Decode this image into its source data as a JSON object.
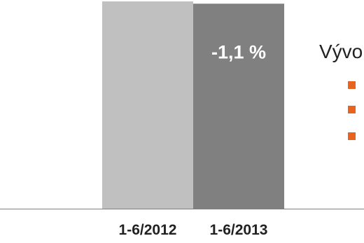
{
  "chart_data": {
    "type": "bar",
    "categories": [
      "1-6/2012",
      "1-6/2013"
    ],
    "values": [
      100,
      98.9
    ],
    "data_labels": [
      "",
      "-1,1 %"
    ],
    "bar_colors": [
      "#c0c0c0",
      "#808080"
    ],
    "title": "",
    "xlabel": "",
    "ylabel": "",
    "ylim": [
      0,
      100
    ],
    "grid": false,
    "legend": "none"
  },
  "side_text": {
    "heading": "Vývo",
    "bullet_color": "#e8641e",
    "bullets": [
      "",
      "",
      ""
    ]
  }
}
